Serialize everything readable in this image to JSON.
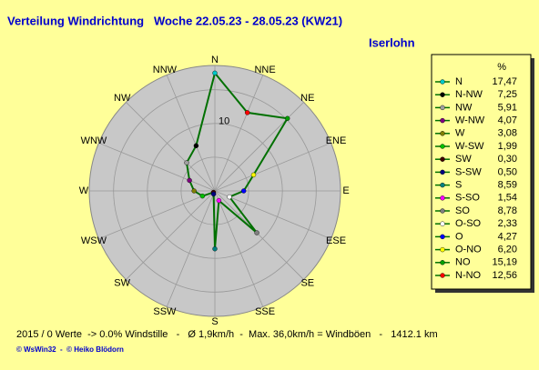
{
  "chart_data": {
    "type": "radar",
    "title": "Verteilung Windrichtung   Woche 22.05.23 - 28.05.23 (KW21)",
    "location": "Iserlohn",
    "unit": "%",
    "categories": [
      "N",
      "NNE",
      "NE",
      "ENE",
      "E",
      "ESE",
      "SE",
      "SSE",
      "S",
      "SSW",
      "SW",
      "WSW",
      "W",
      "WNW",
      "NW",
      "NNW"
    ],
    "rlim": [
      0,
      18.6
    ],
    "rticks": [
      10
    ],
    "line_color": "#007000",
    "series": {
      "names": [
        "N",
        "N-NW",
        "NW",
        "W-NW",
        "W",
        "W-SW",
        "SW",
        "S-SW",
        "S",
        "S-SO",
        "SO",
        "O-SO",
        "O",
        "O-NO",
        "NO",
        "N-NO"
      ],
      "values": [
        17.47,
        7.25,
        5.91,
        4.07,
        3.08,
        1.99,
        0.3,
        0.5,
        8.59,
        1.54,
        8.78,
        2.33,
        4.27,
        6.2,
        15.19,
        12.56
      ],
      "value_labels": [
        "17,47",
        "7,25",
        "5,91",
        "4,07",
        "3,08",
        "1,99",
        "0,30",
        "0,50",
        "8,59",
        "1,54",
        "8,78",
        "2,33",
        "4,27",
        "6,20",
        "15,19",
        "12,56"
      ],
      "colors": [
        "#00c8c8",
        "#000000",
        "#a0a0a0",
        "#800080",
        "#808000",
        "#00c000",
        "#400000",
        "#000080",
        "#008080",
        "#ff00ff",
        "#808080",
        "#ffffff",
        "#0000ff",
        "#ffff00",
        "#00a000",
        "#ff0000"
      ]
    },
    "footer": "2015 / 0 Werte  -> 0.0% Windstille   -   Ø 1,9km/h  -  Max. 36,0km/h = Windböen   -   1412.1 km",
    "credit": "© WsWin32  -  © Heiko Blödorn"
  }
}
